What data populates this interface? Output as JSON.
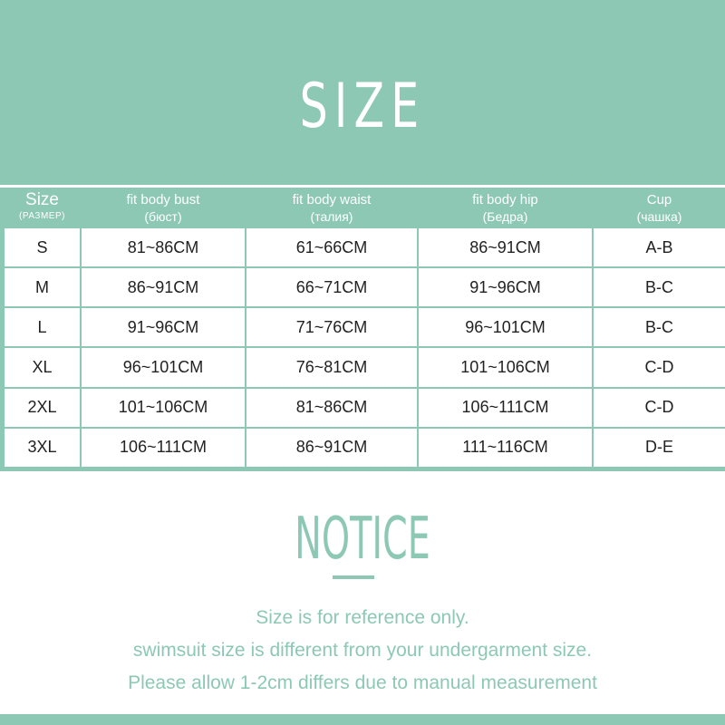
{
  "title": "SIZE",
  "table": {
    "headers": [
      {
        "main": "Size",
        "sub": "(РАЗМЕР)"
      },
      {
        "main": "fit body bust",
        "sub": "(бюст)"
      },
      {
        "main": "fit body waist",
        "sub": "(талия)"
      },
      {
        "main": "fit body hip",
        "sub": "(Бедра)"
      },
      {
        "main": "Cup",
        "sub": "(чашка)"
      }
    ],
    "rows": [
      [
        "S",
        "81~86CM",
        "61~66CM",
        "86~91CM",
        "A-B"
      ],
      [
        "M",
        "86~91CM",
        "66~71CM",
        "91~96CM",
        "B-C"
      ],
      [
        "L",
        "91~96CM",
        "71~76CM",
        "96~101CM",
        "B-C"
      ],
      [
        "XL",
        "96~101CM",
        "76~81CM",
        "101~106CM",
        "C-D"
      ],
      [
        "2XL",
        "101~106CM",
        "81~86CM",
        "106~111CM",
        "C-D"
      ],
      [
        "3XL",
        "106~111CM",
        "86~91CM",
        "111~116CM",
        "D-E"
      ]
    ]
  },
  "notice": {
    "title": "NOTICE",
    "lines": [
      "Size is for reference only.",
      "swimsuit size is different from your undergarment size.",
      "Please allow 1-2cm differs due to manual measurement"
    ]
  },
  "colors": {
    "accent": "#8dc8b5",
    "text": "#222222"
  }
}
